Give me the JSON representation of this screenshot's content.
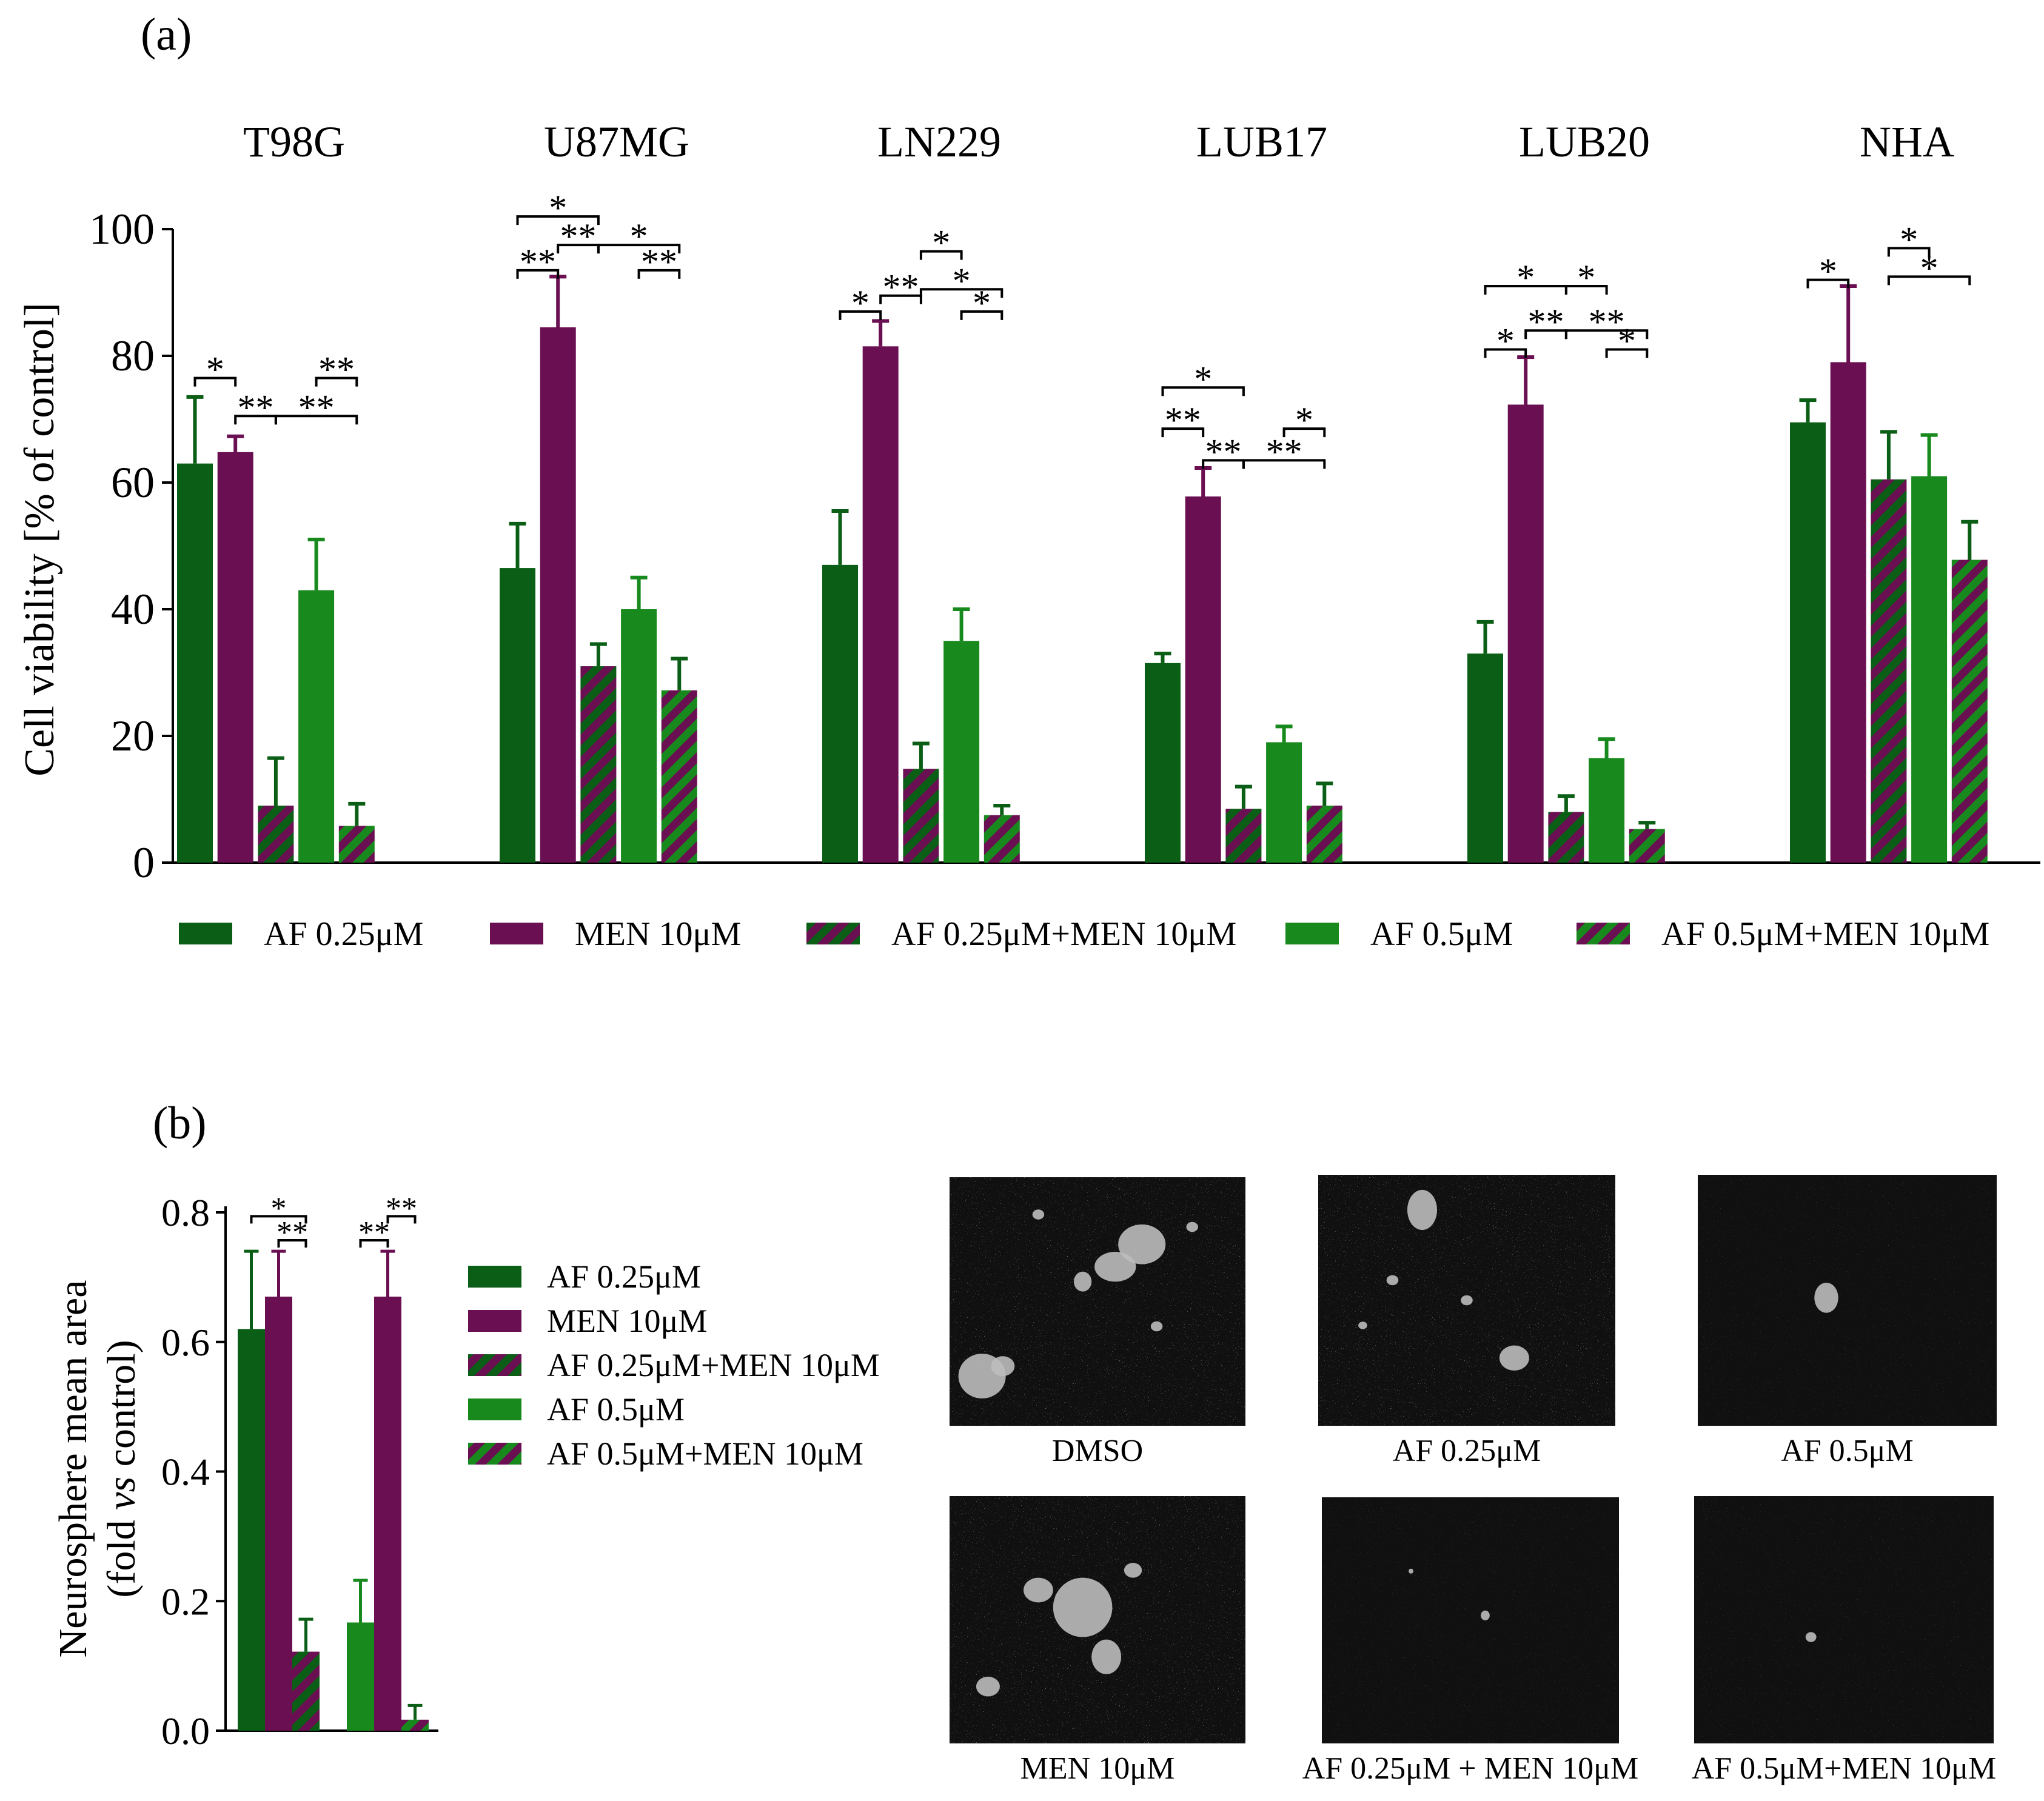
{
  "colors": {
    "af025": "#0b5e15",
    "men": "#6a0f52",
    "af05": "#17891d",
    "axis": "#000000",
    "micro_bg": "#101010"
  },
  "legend": {
    "items": [
      {
        "label": "AF 0.25μM",
        "fill": "af025"
      },
      {
        "label": "MEN 10μM",
        "fill": "men"
      },
      {
        "label": "AF 0.25μM+MEN 10μM",
        "fill": "stripe1"
      },
      {
        "label": "AF 0.5μM",
        "fill": "af05"
      },
      {
        "label": "AF 0.5μM+MEN 10μM",
        "fill": "stripe2"
      }
    ]
  },
  "chart_data": [
    {
      "panel_label": "(a)",
      "type": "bar",
      "title": "",
      "ylabel": "Cell viability [% of control]",
      "ylim": [
        0,
        100
      ],
      "yticks": [
        0,
        20,
        40,
        60,
        80,
        100
      ],
      "categories": [
        "T98G",
        "U87MG",
        "LN229",
        "LUB17",
        "LUB20",
        "NHA"
      ],
      "series": [
        {
          "name": "AF 0.25μM",
          "values": [
            63,
            46.5,
            47,
            31.5,
            33,
            69.5
          ],
          "errors": [
            10.5,
            7,
            8.5,
            1.5,
            5,
            3.5
          ]
        },
        {
          "name": "MEN 10μM",
          "values": [
            64.8,
            84.5,
            81.5,
            57.8,
            72.3,
            79
          ],
          "errors": [
            2.5,
            8,
            4,
            4.5,
            7.5,
            12
          ]
        },
        {
          "name": "AF 0.25μM+MEN 10μM",
          "values": [
            9,
            31,
            14.8,
            8.5,
            8,
            60.5
          ],
          "errors": [
            7.5,
            3.5,
            4,
            3.5,
            2.5,
            7.5
          ]
        },
        {
          "name": "AF 0.5μM",
          "values": [
            43,
            40,
            35,
            19,
            16.5,
            61
          ],
          "errors": [
            8,
            5,
            5,
            2.5,
            3,
            6.5
          ]
        },
        {
          "name": "AF 0.5μM+MEN 10μM",
          "values": [
            5.8,
            27.2,
            7.5,
            9,
            5.3,
            47.8
          ],
          "errors": [
            3.5,
            5,
            1.5,
            3.5,
            1,
            6
          ]
        }
      ],
      "significance": [
        {
          "group": 0,
          "from": 0,
          "to": 1,
          "y": 76.5,
          "label": "*"
        },
        {
          "group": 0,
          "from": 1,
          "to": 2,
          "y": 70.5,
          "label": "**"
        },
        {
          "group": 0,
          "from": 3,
          "to": 4,
          "y": 76.5,
          "label": "**"
        },
        {
          "group": 0,
          "from": 4,
          "to": 2,
          "y": 70.5,
          "label": "**"
        },
        {
          "group": 1,
          "from": 0,
          "to": 1,
          "y": 93.5,
          "label": "**"
        },
        {
          "group": 1,
          "from": 0,
          "to": 2,
          "y": 102,
          "label": "*"
        },
        {
          "group": 1,
          "from": 1,
          "to": 2,
          "y": 97.5,
          "label": "**"
        },
        {
          "group": 1,
          "from": 3,
          "to": 4,
          "y": 93.5,
          "label": "**"
        },
        {
          "group": 1,
          "from": 4,
          "to": 2,
          "y": 97.5,
          "label": "*"
        },
        {
          "group": 2,
          "from": 0,
          "to": 1,
          "y": 87,
          "label": "*"
        },
        {
          "group": 2,
          "from": 1,
          "to": 2,
          "y": 89.5,
          "label": "**"
        },
        {
          "group": 2,
          "from": 3,
          "to": 4,
          "y": 87,
          "label": "*"
        },
        {
          "group": 2,
          "from": 3,
          "to": 2,
          "y": 96.5,
          "label": "*"
        },
        {
          "group": 2,
          "from": 4,
          "to": 2,
          "y": 90.5,
          "label": "*"
        },
        {
          "group": 3,
          "from": 0,
          "to": 1,
          "y": 68.5,
          "label": "**"
        },
        {
          "group": 3,
          "from": 0,
          "to": 2,
          "y": 75,
          "label": "*"
        },
        {
          "group": 3,
          "from": 1,
          "to": 2,
          "y": 63.5,
          "label": "**"
        },
        {
          "group": 3,
          "from": 3,
          "to": 4,
          "y": 68.5,
          "label": "*"
        },
        {
          "group": 3,
          "from": 4,
          "to": 2,
          "y": 63.5,
          "label": "**"
        },
        {
          "group": 4,
          "from": 0,
          "to": 1,
          "y": 81,
          "label": "*"
        },
        {
          "group": 4,
          "from": 0,
          "to": 2,
          "y": 91,
          "label": "*"
        },
        {
          "group": 4,
          "from": 1,
          "to": 2,
          "y": 84,
          "label": "**"
        },
        {
          "group": 4,
          "from": 3,
          "to": 4,
          "y": 81,
          "label": "*"
        },
        {
          "group": 4,
          "from": 3,
          "to": 2,
          "y": 91,
          "label": "*"
        },
        {
          "group": 4,
          "from": 4,
          "to": 2,
          "y": 84,
          "label": "**"
        },
        {
          "group": 5,
          "from": 0,
          "to": 1,
          "y": 92,
          "label": "*"
        },
        {
          "group": 5,
          "from": 3,
          "to": 2,
          "y": 97,
          "label": "*"
        },
        {
          "group": 5,
          "from": 4,
          "to": 2,
          "y": 92.5,
          "label": "*"
        }
      ]
    },
    {
      "panel_label": "(b)",
      "type": "bar",
      "title": "",
      "ylabel_line1": "Neurosphere mean area",
      "ylabel_line2_pre": "(fold ",
      "ylabel_line2_italic": "vs",
      "ylabel_line2_post": " control)",
      "ylim": [
        0,
        0.8
      ],
      "yticks": [
        "0.0",
        "0.2",
        "0.4",
        "0.6",
        "0.8"
      ],
      "groups": 2,
      "group_members": [
        [
          0,
          1,
          2
        ],
        [
          3,
          1,
          4
        ]
      ],
      "bars": [
        [
          {
            "series": "AF 0.25μM",
            "value": 0.62,
            "error": 0.12
          },
          {
            "series": "MEN 10μM",
            "value": 0.67,
            "error": 0.07
          },
          {
            "series": "AF 0.25μM+MEN 10μM",
            "value": 0.122,
            "error": 0.05
          }
        ],
        [
          {
            "series": "AF 0.5μM",
            "value": 0.167,
            "error": 0.065
          },
          {
            "series": "MEN 10μM",
            "value": 0.67,
            "error": 0.07
          },
          {
            "series": "AF 0.5μM+MEN 10μM",
            "value": 0.017,
            "error": 0.022
          }
        ]
      ],
      "significance": [
        {
          "group": 0,
          "from": 0,
          "to": 2,
          "y": 0.794,
          "label": "*"
        },
        {
          "group": 0,
          "from": 1,
          "to": 2,
          "y": 0.757,
          "label": "**"
        },
        {
          "group": 1,
          "from": 0,
          "to": 1,
          "y": 0.757,
          "label": "**"
        },
        {
          "group": 1,
          "from": 1,
          "to": 2,
          "y": 0.794,
          "label": "**"
        }
      ]
    }
  ],
  "micrographs": [
    {
      "caption": "DMSO",
      "scene": "dmso"
    },
    {
      "caption": "AF 0.25μM",
      "scene": "af025"
    },
    {
      "caption": "AF 0.5μM",
      "scene": "af05"
    },
    {
      "caption": "MEN 10μM",
      "scene": "men"
    },
    {
      "caption": "AF 0.25μM + MEN 10μM",
      "scene": "combo1"
    },
    {
      "caption": "AF 0.5μM+MEN 10μM",
      "scene": "combo2"
    }
  ]
}
